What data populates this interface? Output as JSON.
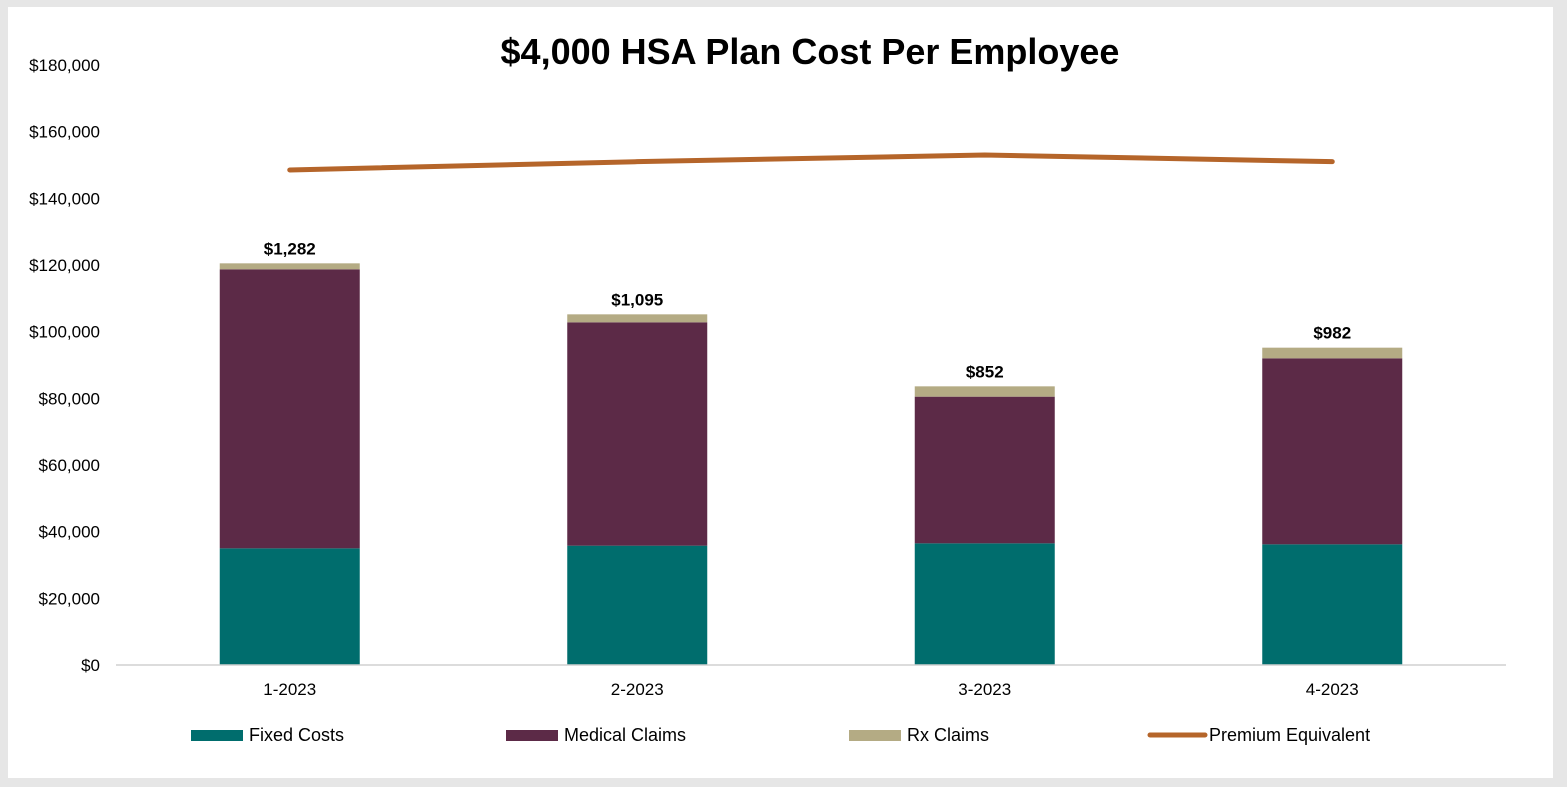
{
  "chart_data": {
    "type": "bar",
    "stacked": true,
    "title": "$4,000 HSA Plan Cost Per Employee",
    "categories": [
      "1-2023",
      "2-2023",
      "3-2023",
      "4-2023"
    ],
    "ylim": [
      0,
      180000
    ],
    "yticks": [
      0,
      20000,
      40000,
      60000,
      80000,
      100000,
      120000,
      140000,
      160000,
      180000
    ],
    "ytick_labels": [
      "$0",
      "$20,000",
      "$40,000",
      "$60,000",
      "$80,000",
      "$100,000",
      "$120,000",
      "$140,000",
      "$160,000",
      "$180,000"
    ],
    "grid": false,
    "legend_position": "bottom",
    "series": [
      {
        "name": "Fixed Costs",
        "kind": "bar",
        "color": "#006d6d",
        "values": [
          35000,
          35800,
          36500,
          36200
        ]
      },
      {
        "name": "Medical Claims",
        "kind": "bar",
        "color": "#5c2a47",
        "values": [
          83700,
          67000,
          44000,
          55800
        ]
      },
      {
        "name": "Rx Claims",
        "kind": "bar",
        "color": "#b4ab84",
        "values": [
          1800,
          2400,
          3100,
          3200
        ]
      },
      {
        "name": "Premium Equivalent",
        "kind": "line",
        "color": "#b5652a",
        "values": [
          148500,
          151000,
          153000,
          151000
        ]
      }
    ],
    "data_labels": [
      "$1,282",
      "$1,095",
      "$852",
      "$982"
    ]
  }
}
